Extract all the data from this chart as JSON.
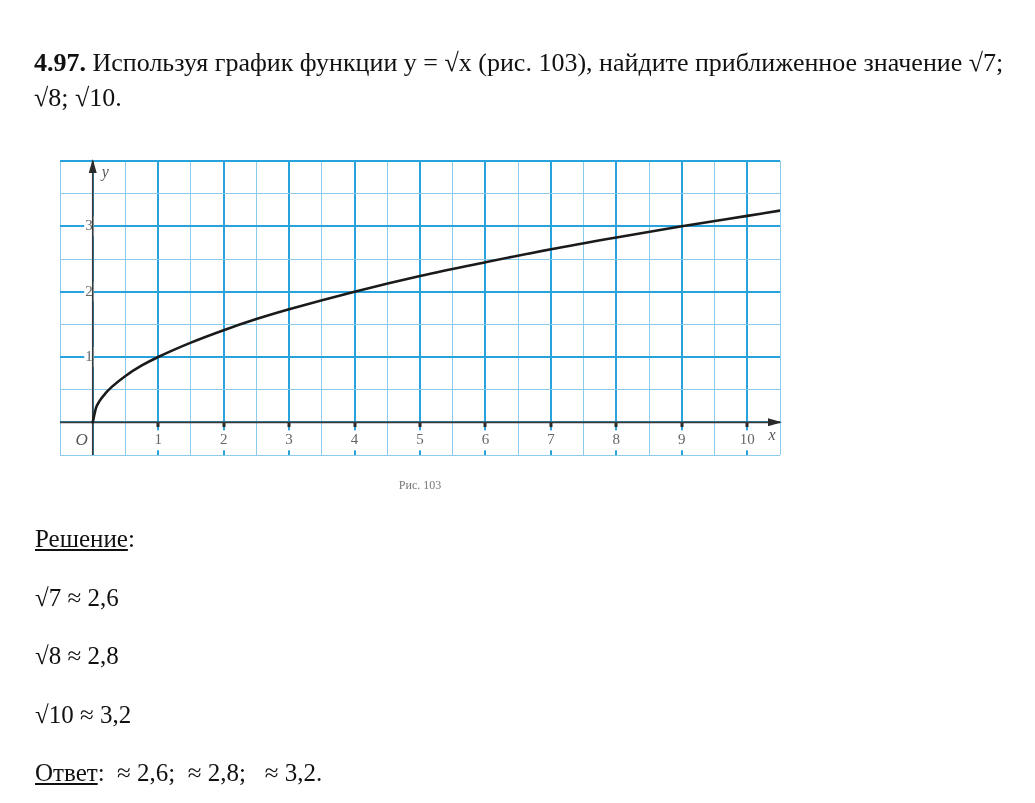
{
  "chart_data": {
    "type": "line",
    "title": "4.97. Используя график функции y = √x (рис. 103), найдите приближенное значение √7; √8; √10.",
    "xlabel": "x",
    "ylabel": "y",
    "x": [
      0,
      0.05,
      0.1,
      0.2,
      0.3,
      0.5,
      0.75,
      1,
      1.5,
      2,
      2.5,
      3,
      4,
      5,
      6,
      7,
      8,
      9,
      10,
      10.5
    ],
    "values": [
      0,
      0.22,
      0.32,
      0.45,
      0.55,
      0.71,
      0.87,
      1,
      1.22,
      1.41,
      1.58,
      1.73,
      2,
      2.24,
      2.45,
      2.65,
      2.83,
      3,
      3.16,
      3.24
    ],
    "color": "#1a1a1a",
    "marker": "none",
    "xlim": [
      -0.5,
      10.5
    ],
    "ylim": [
      -0.5,
      4
    ],
    "xticks": [
      {
        "value": -0.5,
        "label": null
      },
      {
        "value": 0,
        "label": null
      },
      {
        "value": 0.5,
        "label": null
      },
      1,
      {
        "value": 1.5,
        "label": null
      },
      2,
      {
        "value": 2.5,
        "label": null
      },
      3,
      {
        "value": 3.5,
        "label": null
      },
      4,
      {
        "value": 4.5,
        "label": null
      },
      5,
      {
        "value": 5.5,
        "label": null
      },
      6,
      {
        "value": 6.5,
        "label": null
      },
      7,
      {
        "value": 7.5,
        "label": null
      },
      8,
      {
        "value": 8.5,
        "label": null
      },
      9,
      {
        "value": 9.5,
        "label": null
      },
      10,
      {
        "value": 10.5,
        "label": null
      }
    ],
    "yticks": [
      {
        "value": -0.5,
        "label": null
      },
      {
        "value": 0,
        "label": null
      },
      {
        "value": 0.5,
        "label": null
      },
      1,
      {
        "value": 1.5,
        "label": null
      },
      2,
      {
        "value": 2.5,
        "label": null
      },
      3,
      {
        "value": 3.5,
        "label": null
      },
      {
        "value": 4,
        "label": null
      }
    ],
    "grid": true,
    "annotations": [
      {
        "text": "O",
        "x": 0,
        "y": 0
      },
      "Рис. 103",
      "Решение:",
      "√7 ≈ 2,6",
      "√8 ≈ 2,8",
      "√10 ≈ 3,2",
      "Ответ:  ≈ 2,6;  ≈ 2,8;   ≈ 3,2."
    ]
  }
}
